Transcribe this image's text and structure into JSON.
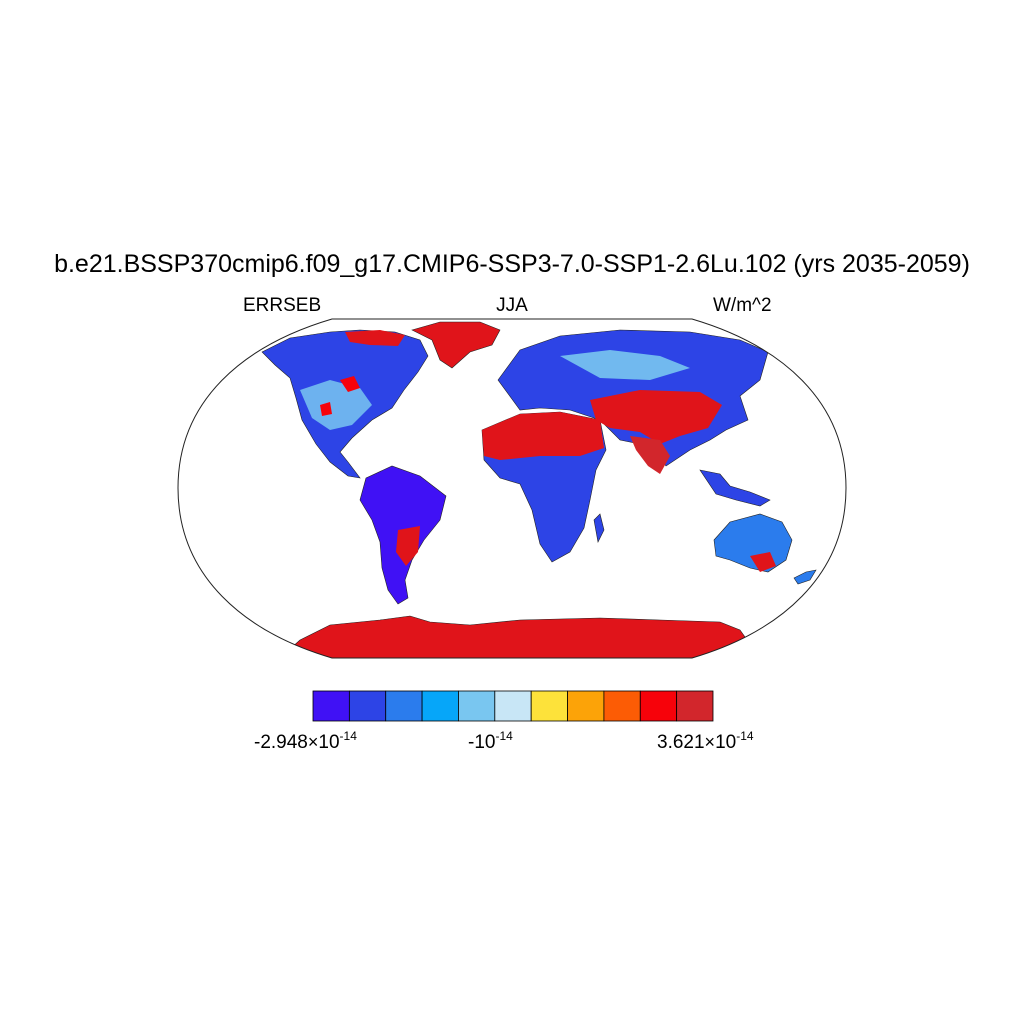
{
  "title": "b.e21.BSSP370cmip6.f09_g17.CMIP6-SSP3-7.0-SSP1-2.6Lu.102 (yrs 2035-2059)",
  "subtitle_left": "ERRSEB",
  "subtitle_center": "JJA",
  "subtitle_right": "W/m^2",
  "projection": "Robinson",
  "colorbar": {
    "colors": [
      "#4011f5",
      "#2d44e6",
      "#2b7ced",
      "#06a6f9",
      "#79c6f0",
      "#c8e6f6",
      "#fde23a",
      "#fca308",
      "#fc5c05",
      "#f7020a",
      "#d2262c"
    ],
    "label_min_mantissa": "-2.948",
    "label_min_exp": "-14",
    "label_mid_base": "-10",
    "label_mid_exp": "-14",
    "label_max_mantissa": "3.621",
    "label_max_exp": "-14",
    "times_sign": "×",
    "ten": "10"
  }
}
